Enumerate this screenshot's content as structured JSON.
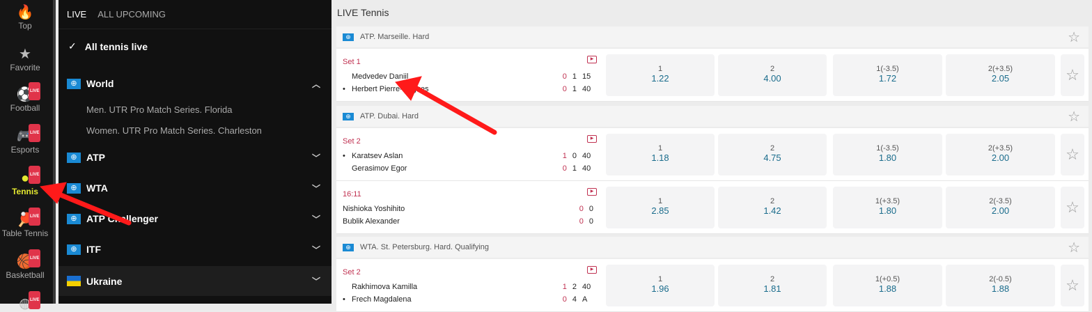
{
  "sports": [
    {
      "label": "Top",
      "icon": "flame-icon",
      "glyph": "🔥",
      "live": false
    },
    {
      "label": "Favorite",
      "icon": "star-icon",
      "glyph": "★",
      "live": false
    },
    {
      "label": "Football",
      "icon": "football-icon",
      "glyph": "⚽",
      "live": true
    },
    {
      "label": "Esports",
      "icon": "gamepad-icon",
      "glyph": "🎮",
      "live": true
    },
    {
      "label": "Tennis",
      "icon": "tennis-ball-icon",
      "glyph": "●",
      "live": true,
      "active": true
    },
    {
      "label": "Table Tennis",
      "icon": "table-tennis-icon",
      "glyph": "🏓",
      "live": true
    },
    {
      "label": "Basketball",
      "icon": "basketball-icon",
      "glyph": "🏀",
      "live": true
    },
    {
      "label": "",
      "icon": "sport-icon",
      "glyph": "◍",
      "live": true
    }
  ],
  "live_badge": "LIVE",
  "menu": {
    "tabs": [
      "LIVE",
      "ALL UPCOMING"
    ],
    "all_live": "All tennis live",
    "groups": [
      {
        "label": "World",
        "expanded": true,
        "subs": [
          "Men. UTR Pro Match Series. Florida",
          "Women. UTR Pro Match Series. Charleston"
        ]
      },
      {
        "label": "ATP"
      },
      {
        "label": "WTA"
      },
      {
        "label": "ATP Challenger"
      },
      {
        "label": "ITF"
      },
      {
        "label": "Ukraine",
        "flag": "ukraine"
      }
    ]
  },
  "main": {
    "title": "LIVE Tennis",
    "leagues": [
      {
        "name": "ATP. Marseille. Hard",
        "matches": [
          {
            "status": "Set 1",
            "serve": 1,
            "players": [
              {
                "name": "Medvedev Daniil",
                "score": [
                  "0",
                  "1",
                  "15"
                ]
              },
              {
                "name": "Herbert Pierre-Hugues",
                "score": [
                  "0",
                  "1",
                  "40"
                ]
              }
            ],
            "odds": [
              {
                "l": "1",
                "v": "1.22"
              },
              {
                "l": "2",
                "v": "4.00"
              },
              {
                "l": "1(-3.5)",
                "v": "1.72"
              },
              {
                "l": "2(+3.5)",
                "v": "2.05"
              }
            ]
          }
        ]
      },
      {
        "name": "ATP. Dubai. Hard",
        "matches": [
          {
            "status": "Set 2",
            "serve": 0,
            "players": [
              {
                "name": "Karatsev Aslan",
                "score": [
                  "1",
                  "0",
                  "40"
                ]
              },
              {
                "name": "Gerasimov Egor",
                "score": [
                  "0",
                  "1",
                  "40"
                ]
              }
            ],
            "odds": [
              {
                "l": "1",
                "v": "1.18"
              },
              {
                "l": "2",
                "v": "4.75"
              },
              {
                "l": "1(-3.5)",
                "v": "1.80"
              },
              {
                "l": "2(+3.5)",
                "v": "2.00"
              }
            ]
          },
          {
            "status": "16:11",
            "serve": -1,
            "players": [
              {
                "name": "Nishioka Yoshihito",
                "score": [
                  "0",
                  "0"
                ]
              },
              {
                "name": "Bublik Alexander",
                "score": [
                  "0",
                  "0"
                ]
              }
            ],
            "odds": [
              {
                "l": "1",
                "v": "2.85"
              },
              {
                "l": "2",
                "v": "1.42"
              },
              {
                "l": "1(+3.5)",
                "v": "1.80"
              },
              {
                "l": "2(-3.5)",
                "v": "2.00"
              }
            ]
          }
        ]
      },
      {
        "name": "WTA. St. Petersburg. Hard. Qualifying",
        "matches": [
          {
            "status": "Set 2",
            "serve": 1,
            "players": [
              {
                "name": "Rakhimova Kamilla",
                "score": [
                  "1",
                  "2",
                  "40"
                ]
              },
              {
                "name": "Frech Magdalena",
                "score": [
                  "0",
                  "4",
                  "A"
                ]
              }
            ],
            "odds": [
              {
                "l": "1",
                "v": "1.96"
              },
              {
                "l": "2",
                "v": "1.81"
              },
              {
                "l": "1(+0.5)",
                "v": "1.88"
              },
              {
                "l": "2(-0.5)",
                "v": "1.88"
              }
            ]
          }
        ]
      }
    ]
  },
  "colors": {
    "accent_live": "#e0344a",
    "active_sport": "#e4e830",
    "odds": "#1a6c8c",
    "status": "#c03050",
    "annotation_arrow": "#ff1a1a"
  }
}
